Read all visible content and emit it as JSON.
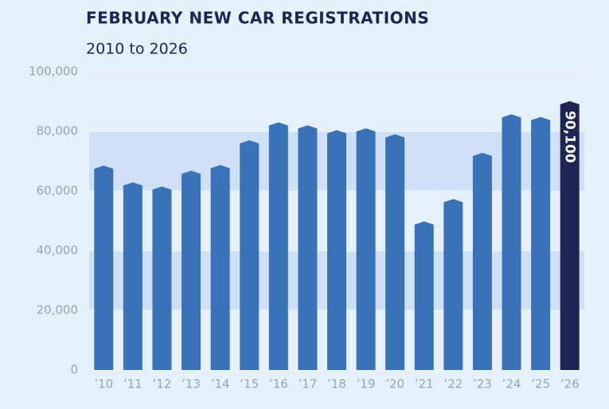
{
  "chart_data": {
    "type": "bar",
    "title": "FEBRUARY NEW CAR REGISTRATIONS",
    "subtitle": "2010 to 2026",
    "categories": [
      "’10",
      "’11",
      "’12",
      "’13",
      "’14",
      "’15",
      "’16",
      "’17",
      "’18",
      "’19",
      "’20",
      "’21",
      "’22",
      "’23",
      "’24",
      "’25",
      "’26"
    ],
    "values": [
      68500,
      62900,
      61500,
      66800,
      68700,
      77000,
      83000,
      82000,
      80400,
      81000,
      79000,
      49800,
      57300,
      72800,
      85700,
      84800,
      90100
    ],
    "value_labels": [
      null,
      null,
      null,
      null,
      null,
      null,
      null,
      null,
      null,
      null,
      null,
      null,
      null,
      null,
      null,
      null,
      "90,100"
    ],
    "colors": [
      "#3a72b8",
      "#3a72b8",
      "#3a72b8",
      "#3a72b8",
      "#3a72b8",
      "#3a72b8",
      "#3a72b8",
      "#3a72b8",
      "#3a72b8",
      "#3a72b8",
      "#3a72b8",
      "#3a72b8",
      "#3a72b8",
      "#3a72b8",
      "#3a72b8",
      "#3a72b8",
      "#1f2453"
    ],
    "ylim": [
      0,
      100000
    ],
    "yticks": [
      {
        "value": 0,
        "label": "0"
      },
      {
        "value": 20000,
        "label": "20,000"
      },
      {
        "value": 40000,
        "label": "40,000"
      },
      {
        "value": 60000,
        "label": "60,000"
      },
      {
        "value": 80000,
        "label": "80,000"
      },
      {
        "value": 100000,
        "label": "100,000"
      }
    ],
    "grid": true
  }
}
